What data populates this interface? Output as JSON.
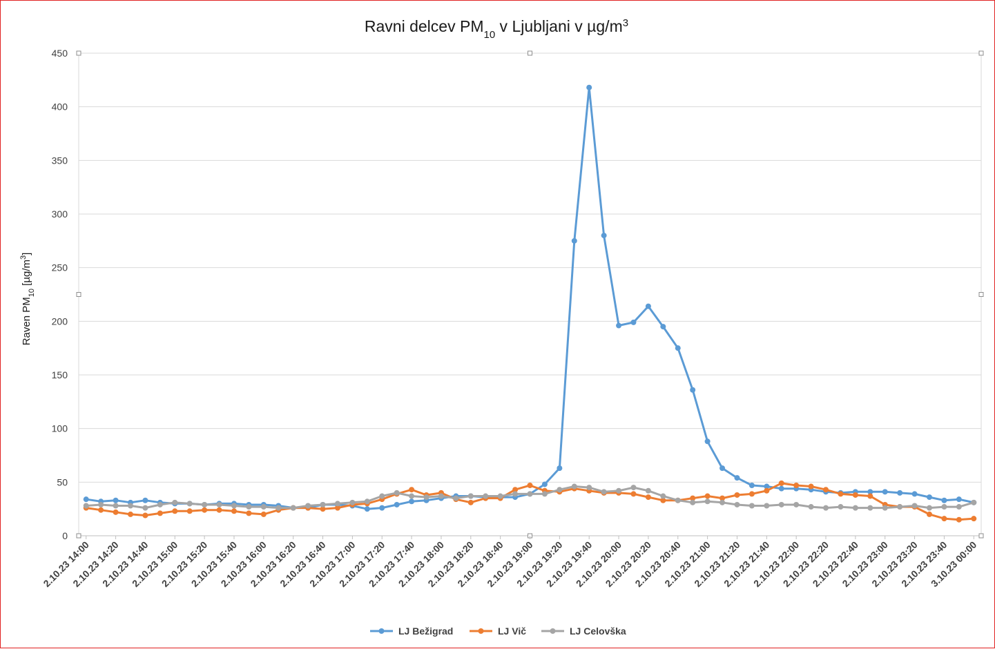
{
  "chart_data": {
    "type": "line",
    "title": "Ravni delcev PM₁₀ v Ljubljani v µg/m³",
    "title_parts": {
      "main": "Ravni delcev PM",
      "sub": "10",
      "rest": " v Ljubljani v µg/m",
      "sup": "3"
    },
    "ylabel": "Raven PM₁₀ [µg/m³]",
    "ylabel_parts": {
      "main": "Raven PM",
      "sub": "10",
      "rest": " [µg/m",
      "sup": "3",
      "end": "]"
    },
    "xlabel": "",
    "ylim": [
      0,
      450
    ],
    "yticks": [
      0,
      50,
      100,
      150,
      200,
      250,
      300,
      350,
      400,
      450
    ],
    "grid": true,
    "legend_position": "bottom",
    "x": [
      "2.10.23 14:00",
      "2.10.23 14:10",
      "2.10.23 14:20",
      "2.10.23 14:30",
      "2.10.23 14:40",
      "2.10.23 14:50",
      "2.10.23 15:00",
      "2.10.23 15:10",
      "2.10.23 15:20",
      "2.10.23 15:30",
      "2.10.23 15:40",
      "2.10.23 15:50",
      "2.10.23 16:00",
      "2.10.23 16:10",
      "2.10.23 16:20",
      "2.10.23 16:30",
      "2.10.23 16:40",
      "2.10.23 16:50",
      "2.10.23 17:00",
      "2.10.23 17:10",
      "2.10.23 17:20",
      "2.10.23 17:30",
      "2.10.23 17:40",
      "2.10.23 17:50",
      "2.10.23 18:00",
      "2.10.23 18:10",
      "2.10.23 18:20",
      "2.10.23 18:30",
      "2.10.23 18:40",
      "2.10.23 18:50",
      "2.10.23 19:00",
      "2.10.23 19:10",
      "2.10.23 19:20",
      "2.10.23 19:30",
      "2.10.23 19:40",
      "2.10.23 19:50",
      "2.10.23 20:00",
      "2.10.23 20:10",
      "2.10.23 20:20",
      "2.10.23 20:30",
      "2.10.23 20:40",
      "2.10.23 20:50",
      "2.10.23 21:00",
      "2.10.23 21:10",
      "2.10.23 21:20",
      "2.10.23 21:30",
      "2.10.23 21:40",
      "2.10.23 21:50",
      "2.10.23 22:00",
      "2.10.23 22:10",
      "2.10.23 22:20",
      "2.10.23 22:30",
      "2.10.23 22:40",
      "2.10.23 22:50",
      "2.10.23 23:00",
      "2.10.23 23:10",
      "2.10.23 23:20",
      "2.10.23 23:30",
      "2.10.23 23:40",
      "2.10.23 23:50",
      "3.10.23 00:00"
    ],
    "tick_labels": [
      "2.10.23 14:00",
      "2.10.23 14:20",
      "2.10.23 14:40",
      "2.10.23 15:00",
      "2.10.23 15:20",
      "2.10.23 15:40",
      "2.10.23 16:00",
      "2.10.23 16:20",
      "2.10.23 16:40",
      "2.10.23 17:00",
      "2.10.23 17:20",
      "2.10.23 17:40",
      "2.10.23 18:00",
      "2.10.23 18:20",
      "2.10.23 18:40",
      "2.10.23 19:00",
      "2.10.23 19:20",
      "2.10.23 19:40",
      "2.10.23 20:00",
      "2.10.23 20:20",
      "2.10.23 20:40",
      "2.10.23 21:00",
      "2.10.23 21:20",
      "2.10.23 21:40",
      "2.10.23 22:00",
      "2.10.23 22:20",
      "2.10.23 22:40",
      "2.10.23 23:00",
      "2.10.23 23:20",
      "2.10.23 23:40",
      "3.10.23 00:00"
    ],
    "series": [
      {
        "name": "LJ Bežigrad",
        "color": "#5b9bd5",
        "values": [
          34,
          32,
          33,
          31,
          33,
          31,
          30,
          30,
          29,
          30,
          30,
          29,
          29,
          28,
          26,
          26,
          29,
          29,
          28,
          25,
          26,
          29,
          32,
          33,
          35,
          37,
          37,
          36,
          36,
          36,
          39,
          48,
          63,
          275,
          418,
          280,
          196,
          199,
          214,
          195,
          175,
          136,
          88,
          63,
          54,
          47,
          46,
          44,
          44,
          43,
          41,
          40,
          41,
          41,
          41,
          40,
          39,
          36,
          33,
          34,
          31
        ]
      },
      {
        "name": "LJ Vič",
        "color": "#ed7d31",
        "values": [
          26,
          24,
          22,
          20,
          19,
          21,
          23,
          23,
          24,
          24,
          23,
          21,
          20,
          24,
          26,
          26,
          25,
          26,
          29,
          30,
          34,
          39,
          43,
          38,
          40,
          34,
          31,
          35,
          35,
          43,
          47,
          42,
          41,
          44,
          42,
          40,
          40,
          39,
          36,
          33,
          33,
          35,
          37,
          35,
          38,
          39,
          42,
          49,
          47,
          46,
          43,
          39,
          38,
          37,
          29,
          27,
          27,
          20,
          16,
          15,
          16
        ]
      },
      {
        "name": "LJ Celovška",
        "color": "#a5a5a5",
        "values": [
          28,
          29,
          28,
          28,
          26,
          29,
          31,
          30,
          29,
          29,
          28,
          27,
          27,
          26,
          26,
          28,
          29,
          30,
          31,
          32,
          37,
          40,
          37,
          36,
          37,
          35,
          37,
          37,
          37,
          39,
          39,
          39,
          43,
          46,
          45,
          41,
          42,
          45,
          42,
          37,
          33,
          31,
          32,
          31,
          29,
          28,
          28,
          29,
          29,
          27,
          26,
          27,
          26,
          26,
          26,
          27,
          28,
          26,
          27,
          27,
          31
        ]
      }
    ]
  }
}
